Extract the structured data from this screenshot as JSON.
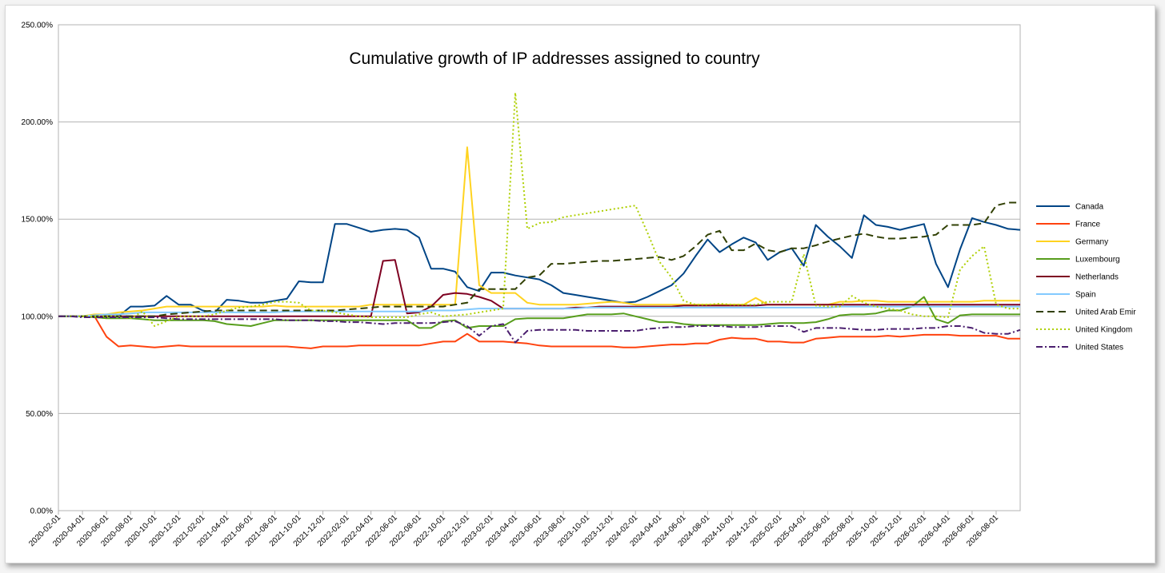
{
  "chart_data": {
    "type": "line",
    "title": "Cumulative growth of IP addresses assigned to country",
    "xlabel": "",
    "ylabel": "",
    "ylim": [
      0,
      250
    ],
    "y_ticks": [
      "0.00%",
      "50.00%",
      "100.00%",
      "150.00%",
      "200.00%",
      "250.00%"
    ],
    "x_tick_labels": [
      "2020-02-01",
      "2020-04-01",
      "2020-06-01",
      "2020-08-01",
      "2020-10-01",
      "2020-12-01",
      "2021-02-01",
      "2021-04-01",
      "2021-06-01",
      "2021-08-01",
      "2021-10-01",
      "2021-12-01",
      "2022-02-01",
      "2022-04-01",
      "2022-06-01",
      "2022-08-01",
      "2022-10-01",
      "2022-12-01",
      "2023-02-01",
      "2023-04-01",
      "2023-06-01",
      "2023-08-01",
      "2023-10-01",
      "2023-12-01",
      "2024-02-01",
      "2024-04-01",
      "2024-06-01",
      "2024-08-01",
      "2024-10-01",
      "2024-12-01",
      "2025-02-01",
      "2025-04-01",
      "2025-06-01",
      "2025-08-01",
      "2025-10-01",
      "2025-12-01",
      "2026-02-01",
      "2026-04-01",
      "2026-06-01",
      "2026-08-01"
    ],
    "grid": true,
    "legend_position": "right",
    "series": [
      {
        "name": "Canada",
        "color": "#004586",
        "dash": "solid",
        "values": [
          100,
          100,
          100,
          100,
          100,
          100,
          105,
          105,
          105.5,
          110.5,
          106,
          106,
          103,
          102,
          108.5,
          108,
          107,
          107,
          108,
          109,
          118,
          117.5,
          117.5,
          147.5,
          147.5,
          145.5,
          143.5,
          144.5,
          145,
          144.5,
          140.5,
          124.5,
          124.5,
          123,
          115,
          113,
          122.5,
          122.5,
          121,
          120,
          119,
          116,
          112,
          111,
          110,
          109,
          108,
          107,
          107.5,
          110,
          113,
          116,
          122,
          131,
          139.5,
          133,
          137,
          140.5,
          138,
          129,
          133,
          135,
          126,
          147,
          141,
          136,
          130,
          152,
          147,
          146,
          144.5,
          146,
          147.5,
          127,
          115,
          134.5,
          150.5,
          148.5,
          147,
          145,
          144.5
        ]
      },
      {
        "name": "France",
        "color": "#ff420e",
        "dash": "solid",
        "values": [
          100,
          100,
          100,
          100,
          89.5,
          84.5,
          85,
          84.5,
          84,
          84.5,
          85,
          84.5,
          84.5,
          84.5,
          84.5,
          84.5,
          84.5,
          84.5,
          84.5,
          84.5,
          84,
          83.5,
          84.5,
          84.5,
          84.5,
          85,
          85,
          85,
          85,
          85,
          85,
          86,
          87,
          87,
          91,
          87,
          87,
          87,
          86.5,
          86,
          85,
          84.5,
          84.5,
          84.5,
          84.5,
          84.5,
          84.5,
          84,
          84,
          84.5,
          85,
          85.5,
          85.5,
          86,
          86,
          88,
          89,
          88.5,
          88.5,
          87,
          87,
          86.5,
          86.5,
          88.5,
          89,
          89.5,
          89.5,
          89.5,
          89.5,
          90,
          89.5,
          90,
          90.5,
          90.5,
          90.5,
          90,
          90,
          90,
          90,
          88.5,
          88.5
        ]
      },
      {
        "name": "Germany",
        "color": "#ffd320",
        "dash": "solid",
        "values": [
          100,
          100,
          100,
          101,
          101,
          102,
          102.5,
          103,
          104,
          105,
          105,
          105,
          105,
          105,
          105,
          105,
          105,
          105,
          105.5,
          105,
          105,
          105,
          105,
          105,
          105,
          105,
          106,
          106,
          106,
          106,
          106,
          106,
          106,
          106,
          187,
          116,
          112,
          112,
          112,
          107,
          106,
          106,
          106,
          106,
          106.5,
          107,
          107.5,
          107,
          106,
          106,
          106,
          106,
          106,
          106,
          106,
          106,
          106,
          106,
          109.5,
          106,
          106,
          106,
          106,
          106,
          106,
          107.5,
          107.5,
          108,
          108,
          107.5,
          107.5,
          107.5,
          107.5,
          107.5,
          107.5,
          107.5,
          107.5,
          108,
          108,
          108,
          108
        ]
      },
      {
        "name": "Luxembourg",
        "color": "#579d1c",
        "dash": "solid",
        "values": [
          100,
          100,
          100,
          99.5,
          99,
          99,
          99,
          98.5,
          98,
          98,
          98,
          98,
          98,
          97.5,
          96,
          95.5,
          95,
          96.5,
          98,
          98,
          98,
          98,
          98,
          98,
          98,
          98,
          98,
          98,
          98,
          98,
          94,
          94,
          97.5,
          98,
          94,
          95,
          95,
          95,
          98.5,
          99,
          99,
          99,
          99,
          100,
          101,
          101,
          101,
          101.5,
          100,
          98.5,
          97,
          97,
          96,
          95.5,
          95.5,
          95.5,
          95.5,
          95.5,
          95.5,
          96,
          96.5,
          96.5,
          96.5,
          97,
          98.5,
          100.5,
          101,
          101,
          101.5,
          103,
          103,
          105,
          110,
          98.5,
          96.5,
          100.5,
          101,
          101,
          101,
          101,
          101
        ]
      },
      {
        "name": "Netherlands",
        "color": "#7e0021",
        "dash": "solid",
        "values": [
          100,
          100,
          100,
          100,
          100,
          100,
          100,
          100,
          100,
          100,
          100,
          100,
          100,
          100,
          100,
          100,
          100,
          100,
          100,
          100,
          100,
          100,
          100,
          100,
          100,
          100,
          100,
          128.5,
          129,
          101.5,
          102,
          105,
          111,
          112,
          111.5,
          110,
          108,
          104,
          104,
          104,
          104,
          104,
          104,
          104.5,
          104.5,
          105,
          105,
          105,
          105,
          105,
          105,
          105,
          105.5,
          105.5,
          105.5,
          105.5,
          105.5,
          105.5,
          105.5,
          106,
          106,
          106,
          106,
          106,
          106,
          106,
          106,
          106,
          106,
          106,
          106,
          106,
          106,
          106,
          106,
          106,
          106,
          106,
          106,
          106,
          106
        ]
      },
      {
        "name": "Spain",
        "color": "#83caff",
        "dash": "solid",
        "values": [
          100,
          100,
          100,
          100.5,
          101,
          101,
          101.5,
          102,
          102,
          102,
          102,
          102,
          102,
          102,
          102,
          102,
          102,
          102,
          102,
          102.5,
          102.5,
          102.5,
          102.5,
          102.5,
          102.5,
          102.5,
          102.5,
          102.5,
          102.5,
          102.5,
          102.5,
          103,
          103,
          103,
          103.5,
          104,
          104,
          104,
          104,
          104,
          104,
          104,
          104,
          104,
          104.5,
          104.5,
          104.5,
          104.5,
          104.5,
          104.5,
          104.5,
          104.5,
          104.5,
          104.5,
          104.5,
          104.5,
          104.5,
          104.5,
          104.5,
          104.5,
          104.5,
          104.5,
          104.5,
          104.5,
          104.5,
          105,
          105,
          105,
          105,
          105,
          105,
          105,
          105,
          105,
          105,
          105,
          105,
          105,
          105,
          105,
          105
        ]
      },
      {
        "name": "United Arab Emir",
        "color": "#314004",
        "dash": "dash",
        "values": [
          100,
          100,
          100,
          100,
          100,
          100,
          100,
          100,
          100,
          101,
          101.5,
          102,
          102.5,
          103,
          103,
          103,
          103,
          103,
          103,
          103,
          103,
          103,
          103,
          103,
          103.5,
          104,
          104.5,
          105,
          105,
          105,
          105,
          105,
          105,
          106,
          107,
          114,
          114,
          114,
          114,
          120,
          121,
          127,
          127,
          127.5,
          128,
          128.5,
          128.5,
          129,
          129.5,
          130,
          130.5,
          129,
          131,
          136,
          142,
          144,
          134,
          134,
          137.5,
          134,
          133,
          135,
          135,
          136.5,
          138.5,
          140,
          141.5,
          142.5,
          141,
          140,
          140,
          140.5,
          141,
          142,
          147,
          147,
          147,
          148,
          157,
          158.5,
          158.5
        ]
      },
      {
        "name": "United Kingdom",
        "color": "#aecf00",
        "dash": "dot",
        "values": [
          100,
          100,
          100,
          100,
          100,
          100,
          99,
          102.5,
          95,
          97.5,
          100,
          100,
          100,
          101,
          103,
          104.5,
          105,
          106,
          107.5,
          107.5,
          107,
          103,
          103,
          102,
          101,
          100,
          99.5,
          99.5,
          99.5,
          99.5,
          101,
          102,
          100,
          100.5,
          101,
          102,
          103,
          104,
          215,
          145,
          148,
          148.5,
          151,
          152,
          153,
          154,
          155,
          156,
          157,
          143,
          128,
          120,
          108,
          106,
          106,
          106.5,
          106,
          106,
          106,
          107.5,
          107.5,
          107.5,
          132,
          105.5,
          105,
          105,
          110.5,
          107,
          105,
          104,
          103,
          101,
          100,
          100,
          99.5,
          124,
          131,
          136,
          106,
          104,
          104
        ]
      },
      {
        "name": "United States",
        "color": "#4b1f6f",
        "dash": "dashdot",
        "values": [
          100,
          100,
          99.5,
          99.5,
          99.5,
          99.5,
          99.5,
          99.5,
          99.5,
          99,
          98.5,
          98.5,
          98.5,
          98.5,
          98.5,
          98.5,
          98.5,
          98.5,
          98.5,
          98,
          98,
          98,
          97.5,
          97.5,
          97,
          97,
          96.5,
          96,
          96.5,
          96.5,
          96.5,
          96.5,
          97,
          97.5,
          95,
          90,
          95,
          96,
          86.5,
          92.5,
          93,
          93,
          93,
          93,
          92.5,
          92.5,
          92.5,
          92.5,
          92.5,
          93.5,
          94,
          94.5,
          94.5,
          95,
          95,
          95,
          94.5,
          94.5,
          94.5,
          95,
          95,
          95,
          92,
          94,
          94,
          94,
          93.5,
          93,
          93,
          93.5,
          93.5,
          93.5,
          94,
          94,
          95,
          95,
          94,
          91.5,
          91,
          91,
          93
        ]
      }
    ]
  }
}
